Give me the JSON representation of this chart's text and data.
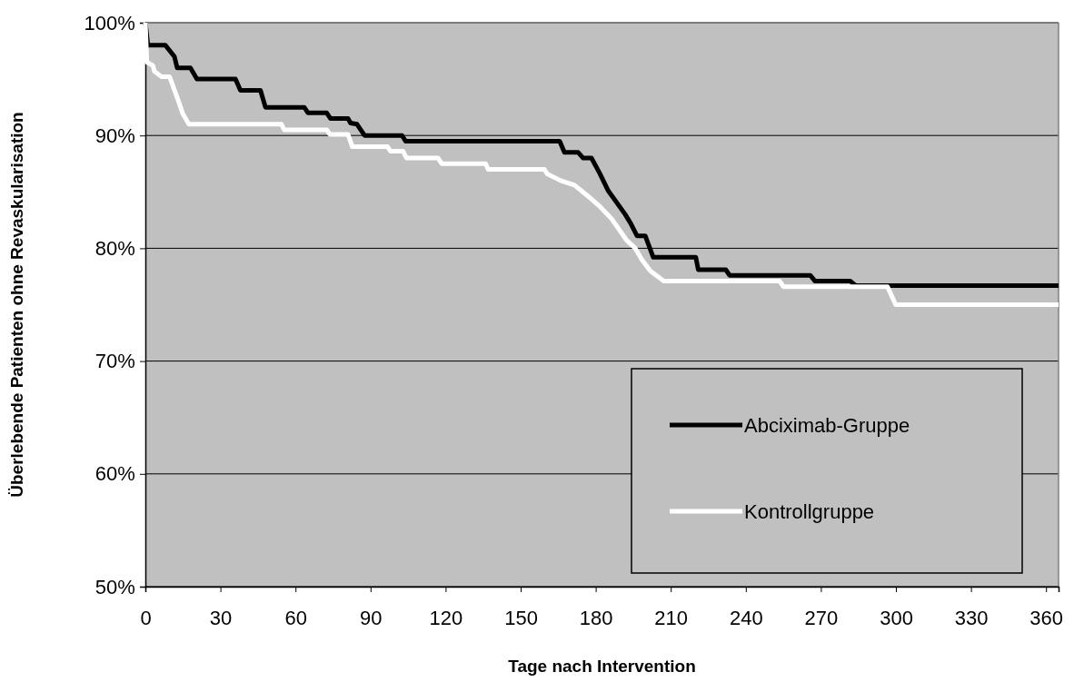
{
  "chart_data": {
    "type": "line",
    "xlabel": "Tage nach Intervention",
    "ylabel": "Überlebende Patienten ohne Revaskularisation",
    "xlim": [
      0,
      365
    ],
    "xticks": [
      0,
      30,
      60,
      90,
      120,
      150,
      180,
      210,
      240,
      270,
      300,
      330,
      360
    ],
    "ylim": [
      50,
      100
    ],
    "yticks": [
      {
        "value": 50,
        "label": "50%"
      },
      {
        "value": 60,
        "label": "60%"
      },
      {
        "value": 70,
        "label": "70%"
      },
      {
        "value": 80,
        "label": "80%"
      },
      {
        "value": 90,
        "label": "90%"
      },
      {
        "value": 100,
        "label": "100%"
      }
    ],
    "grid": "y",
    "legend": "bottom right",
    "line_style": "solid",
    "marker": "none",
    "series": [
      {
        "name": "Abciximab-Gruppe",
        "color": "#000000",
        "x": [
          0,
          1,
          8,
          11.6,
          12.7,
          18,
          20.6,
          36,
          38,
          46,
          48,
          63.5,
          65,
          72.5,
          74,
          81,
          82,
          84.6,
          87.6,
          102.6,
          104,
          165.6,
          167.5,
          173,
          175,
          178.3,
          181.7,
          185,
          191.8,
          194,
          196.5,
          199.8,
          203,
          220,
          221,
          232,
          233.5,
          265.8,
          267.6,
          281.7,
          283.9,
          365
        ],
        "values": [
          100,
          98,
          98,
          97,
          96,
          96,
          95,
          95,
          94,
          94,
          92.5,
          92.5,
          92,
          92,
          91.5,
          91.5,
          91.1,
          91,
          90,
          90,
          89.5,
          89.5,
          88.5,
          88.5,
          88,
          88,
          86.6,
          85.1,
          83,
          82.2,
          81.1,
          81.1,
          79.2,
          79.2,
          78.1,
          78.1,
          77.6,
          77.6,
          77.1,
          77.1,
          76.7,
          76.7
        ]
      },
      {
        "name": "Kontrollgruppe",
        "color": "#ffffff",
        "x": [
          0,
          0.6,
          3,
          3.6,
          6.5,
          9.7,
          13.3,
          15,
          17.4,
          54.4,
          55.5,
          72.5,
          73.7,
          81,
          82.7,
          96.8,
          98,
          103,
          104.4,
          117,
          118.5,
          136,
          137,
          159.5,
          160.6,
          166,
          171.5,
          177.6,
          181.7,
          186.4,
          192.4,
          195.8,
          198.4,
          201.8,
          207.2,
          253.5,
          255,
          296.6,
          299.9,
          365
        ],
        "values": [
          100,
          96.5,
          96.2,
          95.7,
          95.2,
          95.2,
          93,
          91.9,
          91,
          91,
          90.5,
          90.5,
          90.1,
          90.1,
          89,
          89,
          88.6,
          88.6,
          88,
          88,
          87.5,
          87.5,
          87,
          87,
          86.6,
          86,
          85.6,
          84.5,
          83.7,
          82.6,
          80.7,
          80,
          79,
          78,
          77.1,
          77.1,
          76.6,
          76.6,
          75,
          75
        ]
      }
    ]
  }
}
